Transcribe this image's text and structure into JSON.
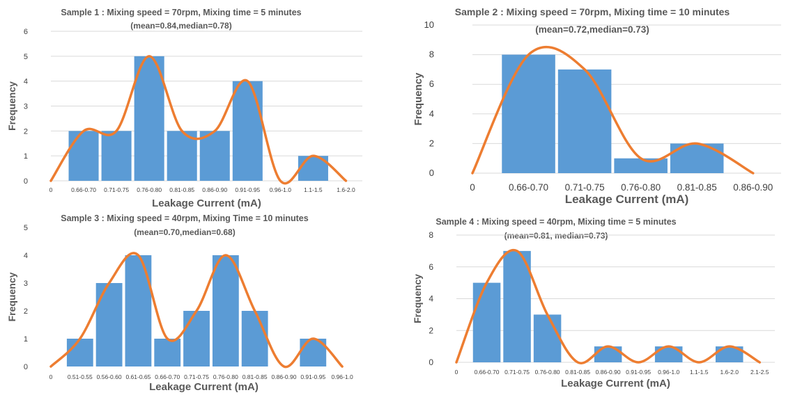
{
  "chart_data": [
    {
      "type": "bar",
      "title": "Sample 1 : Mixing speed = 70rpm, Mixing time = 5 minutes",
      "subtitle": "(mean=0.84,median=0.78)",
      "xlabel": "Leakage Current (mA)",
      "ylabel": "Frequency",
      "ylim": [
        0,
        6
      ],
      "yticks": [
        0,
        1,
        2,
        3,
        4,
        5,
        6
      ],
      "grid": true,
      "categories": [
        "0",
        "0.66-0.70",
        "0.71-0.75",
        "0.76-0.80",
        "0.81-0.85",
        "0.86-0.90",
        "0.91-0.95",
        "0.96-1.0",
        "1.1-1.5",
        "1.6-2.0"
      ],
      "values": [
        0,
        2,
        2,
        5,
        2,
        2,
        4,
        0,
        1,
        0
      ],
      "curve_color": "#ed7d31",
      "bar_color": "#5b9bd5"
    },
    {
      "type": "bar",
      "title": "Sample 2 : Mixing speed = 70rpm, Mixing time = 10 minutes",
      "subtitle": "(mean=0.72,median=0.73)",
      "xlabel": "Leakage Current (mA)",
      "ylabel": "Frequency",
      "ylim": [
        0,
        10
      ],
      "yticks": [
        0,
        2,
        4,
        6,
        8,
        10
      ],
      "grid": true,
      "categories": [
        "0",
        "0.66-0.70",
        "0.71-0.75",
        "0.76-0.80",
        "0.81-0.85",
        "0.86-0.90"
      ],
      "values": [
        0,
        8,
        7,
        1,
        2,
        0
      ],
      "curve_color": "#ed7d31",
      "bar_color": "#5b9bd5"
    },
    {
      "type": "bar",
      "title": "Sample 3 : Mixing speed = 40rpm, Mixing Time = 10 minutes",
      "subtitle": "(mean=0.70,median=0.68)",
      "xlabel": "Leakage Current (mA)",
      "ylabel": "Frequency",
      "ylim": [
        0,
        5
      ],
      "yticks": [
        0,
        1,
        2,
        3,
        4,
        5
      ],
      "grid": false,
      "categories": [
        "0",
        "0.51-0.55",
        "0.56-0.60",
        "0.61-0.65",
        "0.66-0.70",
        "0.71-0.75",
        "0.76-0.80",
        "0.81-0.85",
        "0.86-0.90",
        "0.91-0.95",
        "0.96-1.0"
      ],
      "values": [
        0,
        1,
        3,
        4,
        1,
        2,
        4,
        2,
        0,
        1,
        0
      ],
      "curve_color": "#ed7d31",
      "bar_color": "#5b9bd5"
    },
    {
      "type": "bar",
      "title": "Sample 4 : Mixing speed = 40rpm, Mixing time = 5 minutes",
      "subtitle": "(mean=0.81, median=0.73)",
      "xlabel": "Leakage Current (mA)",
      "ylabel": "Frequency",
      "ylim": [
        0,
        8
      ],
      "yticks": [
        0,
        2,
        4,
        6,
        8
      ],
      "grid": true,
      "categories": [
        "0",
        "0.66-0.70",
        "0.71-0.75",
        "0.76-0.80",
        "0.81-0.85",
        "0.86-0.90",
        "0.91-0.95",
        "0.96-1.0",
        "1.1-1.5",
        "1.6-2.0",
        "2.1-2.5"
      ],
      "values": [
        0,
        5,
        7,
        3,
        0,
        1,
        0,
        1,
        0,
        1,
        0
      ],
      "curve_color": "#ed7d31",
      "bar_color": "#5b9bd5"
    }
  ]
}
